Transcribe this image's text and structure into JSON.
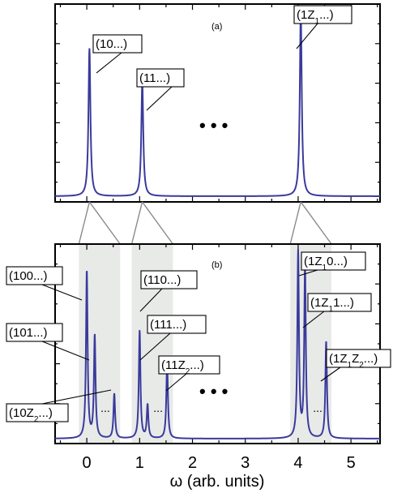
{
  "chart_data": [
    {
      "type": "line",
      "panel": "(a)",
      "peaks": [
        {
          "x": 0.05,
          "amplitude": 0.8,
          "label": "(10...)"
        },
        {
          "x": 1.05,
          "amplitude": 0.62,
          "label": "(11...)"
        },
        {
          "x": 4.05,
          "amplitude": 1.0,
          "label": "(1Z",
          "label_sub": "1",
          "label_tail": "...)"
        }
      ],
      "ellipsis": "• • •",
      "xlim": [
        -0.6,
        5.55
      ],
      "ylim": [
        0,
        1.05
      ]
    },
    {
      "type": "line",
      "panel": "(b)",
      "peaks": [
        {
          "x": 0.0,
          "amplitude": 0.9,
          "label": "(100...)"
        },
        {
          "x": 0.15,
          "amplitude": 0.55,
          "label": "(101...)"
        },
        {
          "x": 0.52,
          "amplitude": 0.24,
          "label": "(10Z",
          "label_sub": "2",
          "label_tail": "...)"
        },
        {
          "x": 1.0,
          "amplitude": 0.58,
          "label": "(110...)"
        },
        {
          "x": 1.15,
          "amplitude": 0.18,
          "label": "(111...)"
        },
        {
          "x": 1.52,
          "amplitude": 0.41,
          "label": "(11Z",
          "label_sub": "2",
          "label_tail": "...)"
        },
        {
          "x": 4.0,
          "amplitude": 1.0,
          "label": "(1Z",
          "label_sub": "1",
          "label_tail": "0...)"
        },
        {
          "x": 4.13,
          "amplitude": 0.92,
          "label": "(1Z",
          "label_sub": "1",
          "label_tail": "1...)"
        },
        {
          "x": 4.53,
          "amplitude": 0.52,
          "label": "(1Z",
          "label_sub": "1",
          "label_tail": "Z",
          "label_sub2": "2",
          "label_tail2": "...)"
        }
      ],
      "bands": [
        [
          -0.15,
          0.63
        ],
        [
          0.85,
          1.63
        ],
        [
          3.85,
          4.63
        ]
      ],
      "group_ellipsis": [
        "...",
        "...",
        "..."
      ],
      "ellipsis": "• • •",
      "xticks": [
        0,
        1,
        2,
        3,
        4,
        5
      ],
      "xlabel": "ω (arb. units)",
      "xlim": [
        -0.6,
        5.55
      ],
      "ylim": [
        0,
        1.05
      ]
    }
  ]
}
